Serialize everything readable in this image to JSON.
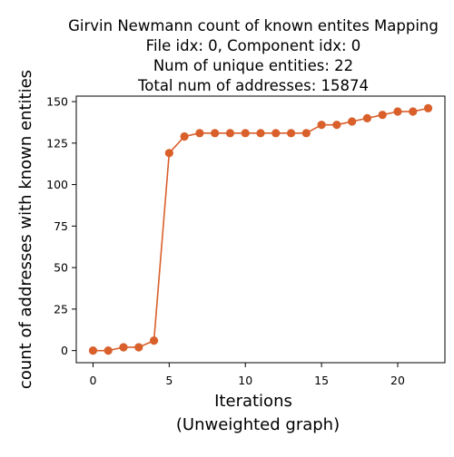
{
  "chart_data": {
    "type": "line",
    "title_lines": [
      "Girvin Newmann count of known entites Mapping",
      "File idx: 0, Component idx: 0",
      "Num of unique entities: 22",
      "Total num of addresses: 15874"
    ],
    "xlabel_lines": [
      "Iterations",
      "(Unweighted graph)"
    ],
    "ylabel": "count of addresses with known entities",
    "x": [
      0,
      1,
      2,
      3,
      4,
      5,
      6,
      7,
      8,
      9,
      10,
      11,
      12,
      13,
      14,
      15,
      16,
      17,
      18,
      19,
      20,
      21,
      22
    ],
    "series": [
      {
        "values": [
          0,
          0,
          2,
          2,
          6,
          119,
          129,
          131,
          131,
          131,
          131,
          131,
          131,
          131,
          131,
          136,
          136,
          138,
          140,
          142,
          144,
          144,
          146
        ],
        "color": "#d95f2b",
        "marker": "circle"
      }
    ],
    "xlim": [
      -1.1,
      23.1
    ],
    "ylim": [
      -7.3,
      153.3
    ],
    "xticks": [
      0,
      5,
      10,
      15,
      20
    ],
    "yticks": [
      0,
      25,
      50,
      75,
      100,
      125,
      150
    ],
    "grid": false,
    "legend": "none"
  }
}
